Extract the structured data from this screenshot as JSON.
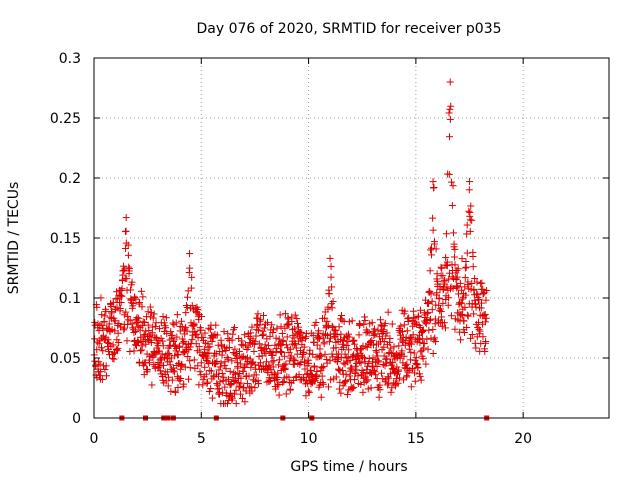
{
  "chart_data": {
    "type": "scatter",
    "title": "Day 076 of 2020, SRMTID for receiver p035",
    "xlabel": "GPS time / hours",
    "ylabel": "SRMTID / TECUs",
    "xlim": [
      0,
      24
    ],
    "ylim": [
      0,
      0.3
    ],
    "xticks": [
      0,
      5,
      10,
      15,
      20
    ],
    "xtick_labels": [
      "0",
      "5",
      "10",
      "15",
      "20"
    ],
    "yticks": [
      0,
      0.05,
      0.1,
      0.15,
      0.2,
      0.25,
      0.3
    ],
    "ytick_labels": [
      "0",
      "0.05",
      "0.1",
      "0.15",
      "0.2",
      "0.25",
      "0.3"
    ],
    "grid": true,
    "marker": "+",
    "color": "#e00000",
    "data_time_range_hours": [
      0,
      18.3
    ],
    "trend": [
      {
        "x": 0.0,
        "y": 0.062
      },
      {
        "x": 0.5,
        "y": 0.068
      },
      {
        "x": 1.0,
        "y": 0.075
      },
      {
        "x": 1.5,
        "y": 0.1
      },
      {
        "x": 2.0,
        "y": 0.075
      },
      {
        "x": 2.5,
        "y": 0.062
      },
      {
        "x": 3.0,
        "y": 0.058
      },
      {
        "x": 3.5,
        "y": 0.052
      },
      {
        "x": 4.0,
        "y": 0.05
      },
      {
        "x": 4.5,
        "y": 0.07
      },
      {
        "x": 5.0,
        "y": 0.06
      },
      {
        "x": 5.5,
        "y": 0.05
      },
      {
        "x": 6.0,
        "y": 0.04
      },
      {
        "x": 6.5,
        "y": 0.042
      },
      {
        "x": 7.0,
        "y": 0.045
      },
      {
        "x": 7.5,
        "y": 0.052
      },
      {
        "x": 8.0,
        "y": 0.055
      },
      {
        "x": 8.5,
        "y": 0.05
      },
      {
        "x": 9.0,
        "y": 0.058
      },
      {
        "x": 9.5,
        "y": 0.055
      },
      {
        "x": 10.0,
        "y": 0.045
      },
      {
        "x": 10.5,
        "y": 0.05
      },
      {
        "x": 11.0,
        "y": 0.058
      },
      {
        "x": 11.5,
        "y": 0.055
      },
      {
        "x": 12.0,
        "y": 0.05
      },
      {
        "x": 12.5,
        "y": 0.055
      },
      {
        "x": 13.0,
        "y": 0.05
      },
      {
        "x": 13.5,
        "y": 0.055
      },
      {
        "x": 14.0,
        "y": 0.05
      },
      {
        "x": 14.5,
        "y": 0.055
      },
      {
        "x": 15.0,
        "y": 0.058
      },
      {
        "x": 15.5,
        "y": 0.075
      },
      {
        "x": 16.0,
        "y": 0.09
      },
      {
        "x": 16.5,
        "y": 0.11
      },
      {
        "x": 17.0,
        "y": 0.1
      },
      {
        "x": 17.5,
        "y": 0.09
      },
      {
        "x": 18.0,
        "y": 0.085
      },
      {
        "x": 18.3,
        "y": 0.085
      }
    ],
    "peaks": [
      {
        "x": 1.5,
        "y": 0.167
      },
      {
        "x": 4.45,
        "y": 0.137
      },
      {
        "x": 11.0,
        "y": 0.133
      },
      {
        "x": 15.8,
        "y": 0.197
      },
      {
        "x": 16.6,
        "y": 0.28
      },
      {
        "x": 17.5,
        "y": 0.197
      }
    ],
    "gap_markers_x": [
      1.3,
      2.4,
      3.25,
      3.45,
      3.7,
      5.7,
      8.8,
      10.15,
      18.3
    ],
    "gap_markers_y": 0
  }
}
